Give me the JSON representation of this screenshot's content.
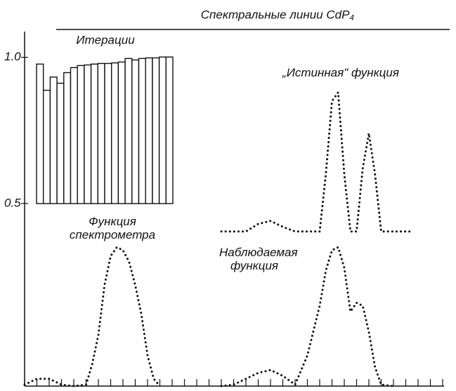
{
  "chart_data": [
    {
      "type": "line",
      "title": "Спектральные линии CdP₄",
      "ylim": [
        -0.125,
        1.1
      ],
      "yticks": [
        {
          "value": 1,
          "label": "1.0"
        },
        0.5
      ],
      "xlim": [
        0,
        34
      ],
      "xticks": [
        0,
        1,
        2,
        3,
        4,
        5,
        6,
        7,
        8,
        9,
        10,
        11,
        12,
        13,
        14,
        15,
        16,
        17,
        18,
        19,
        20,
        21,
        22,
        23,
        24,
        25,
        26,
        27,
        28,
        29,
        30,
        31,
        32,
        33,
        34
      ],
      "series": [
        {
          "name": "Функция спектрометра",
          "color": "#111111",
          "x": [
            0,
            1,
            2,
            3,
            4,
            5,
            5.5,
            6,
            6.5,
            7,
            7.5,
            8,
            8.5,
            9,
            9.5,
            10,
            10.5,
            11
          ],
          "values": [
            -0.12,
            -0.1,
            -0.1,
            -0.12,
            -0.125,
            -0.12,
            -0.05,
            0.05,
            0.22,
            0.32,
            0.35,
            0.34,
            0.3,
            0.22,
            0.12,
            -0.02,
            -0.1,
            -0.125
          ]
        },
        {
          "name": "Наблюдаемая функция",
          "color": "#111111",
          "x": [
            16,
            17,
            18,
            19,
            20,
            21,
            22,
            23,
            24,
            24.5,
            25,
            25.5,
            26,
            26.5,
            27,
            27.5,
            28,
            28.5,
            29,
            30
          ],
          "values": [
            -0.125,
            -0.12,
            -0.1,
            -0.08,
            -0.07,
            -0.09,
            -0.12,
            -0.02,
            0.15,
            0.27,
            0.34,
            0.35,
            0.28,
            0.13,
            0.16,
            0.15,
            0.06,
            -0.06,
            -0.12,
            -0.125
          ]
        },
        {
          "name": "„Истинная\" функция",
          "color": "#111111",
          "x": [
            16,
            18,
            19,
            20,
            21,
            22,
            23,
            24,
            24.5,
            25,
            25.5,
            26,
            26.5,
            27,
            27.5,
            28,
            28.5,
            29,
            30,
            31.5
          ],
          "values": [
            0.404,
            0.404,
            0.43,
            0.44,
            0.42,
            0.404,
            0.404,
            0.404,
            0.6,
            0.85,
            0.88,
            0.6,
            0.404,
            0.404,
            0.62,
            0.74,
            0.6,
            0.404,
            0.404,
            0.404
          ]
        }
      ]
    },
    {
      "type": "bar",
      "title": "Итерации",
      "color": "#ffffff",
      "ylim": [
        0.5,
        1.02
      ],
      "values": [
        0.974,
        0.885,
        0.93,
        0.909,
        0.945,
        0.962,
        0.969,
        0.971,
        0.974,
        0.976,
        0.976,
        0.978,
        0.981,
        0.993,
        0.988,
        0.993,
        0.995,
        0.995,
        0.998,
        0.998
      ]
    }
  ]
}
